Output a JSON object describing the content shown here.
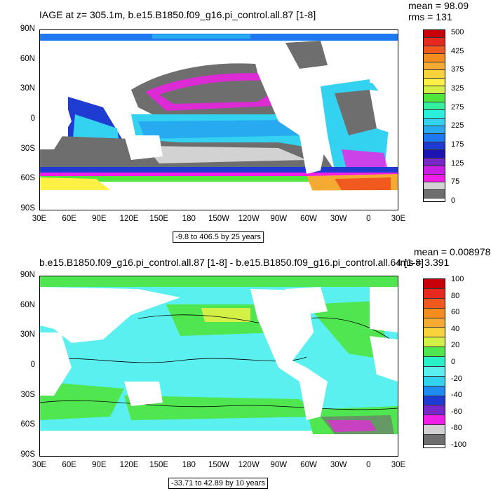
{
  "panel1": {
    "title": "IAGE at z= 305.1m, b.e15.B1850.f09_g16.pi_control.all.87 [1-8]",
    "mean": "mean = 98.09",
    "rms": "rms = 131",
    "range": "-9.8 to 406.5 by 25 years",
    "lat_ticks": [
      "90N",
      "60N",
      "30N",
      "0",
      "30S",
      "60S",
      "90S"
    ],
    "lon_ticks": [
      "30E",
      "60E",
      "90E",
      "120E",
      "150E",
      "180",
      "150W",
      "120W",
      "90W",
      "60W",
      "30W",
      "0",
      "30E"
    ],
    "colorbar_labels": [
      "500",
      "425",
      "375",
      "325",
      "275",
      "225",
      "175",
      "125",
      "75",
      "0"
    ],
    "colors": [
      "#c8000a",
      "#e6281e",
      "#f05a1e",
      "#f58c1e",
      "#f5aa32",
      "#fad23c",
      "#fff046",
      "#d2f046",
      "#50e63c",
      "#32f0a0",
      "#28f0dc",
      "#32d2f0",
      "#28aaf0",
      "#1e78f0",
      "#1e3cd2",
      "#1e14b4",
      "#7828c8",
      "#c81ee6",
      "#f01ee6",
      "#d2d2d2",
      "#6e6e6e"
    ]
  },
  "panel2": {
    "title": "b.e15.B1850.f09_g16.pi_control.all.87 [1-8] - b.e15.B1850.f09_g16.pi_control.all.64 [1-8]",
    "mean": "mean = 0.008978",
    "rms": "rms = 3.391",
    "range": "-33.71 to 42.89 by 10 years",
    "lat_ticks": [
      "90N",
      "60N",
      "30N",
      "0",
      "30S",
      "60S",
      "90S"
    ],
    "lon_ticks": [
      "30E",
      "60E",
      "90E",
      "120E",
      "150E",
      "180",
      "150W",
      "120W",
      "90W",
      "60W",
      "30W",
      "0",
      "30E"
    ],
    "colorbar_labels": [
      "100",
      "80",
      "60",
      "40",
      "20",
      "0",
      "-20",
      "-40",
      "-60",
      "-80",
      "-100"
    ],
    "colors": [
      "#c8000a",
      "#e6281e",
      "#f05a1e",
      "#f58c1e",
      "#f5aa32",
      "#fad23c",
      "#d2f046",
      "#50e650",
      "#28f0c8",
      "#5af0f0",
      "#32d2f0",
      "#1e8cf0",
      "#1e3cd2",
      "#7828c8",
      "#f01ee6",
      "#d2d2d2",
      "#6e6e6e"
    ]
  }
}
